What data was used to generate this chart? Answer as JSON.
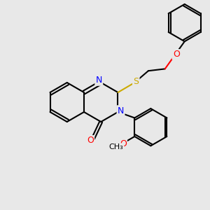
{
  "background_color": "#e8e8e8",
  "bond_color": "#000000",
  "nitrogen_color": "#0000ff",
  "oxygen_color": "#ff0000",
  "sulfur_color": "#ccaa00",
  "atom_labels": {
    "N1": {
      "symbol": "N",
      "color": "#0000ff"
    },
    "N3": {
      "symbol": "N",
      "color": "#0000ff"
    },
    "O4": {
      "symbol": "O",
      "color": "#ff0000"
    },
    "O_ether": {
      "symbol": "O",
      "color": "#ff0000"
    },
    "O_methoxy": {
      "symbol": "O",
      "color": "#ff0000"
    },
    "S": {
      "symbol": "S",
      "color": "#ccaa00"
    }
  },
  "figsize": [
    3.0,
    3.0
  ],
  "dpi": 100
}
